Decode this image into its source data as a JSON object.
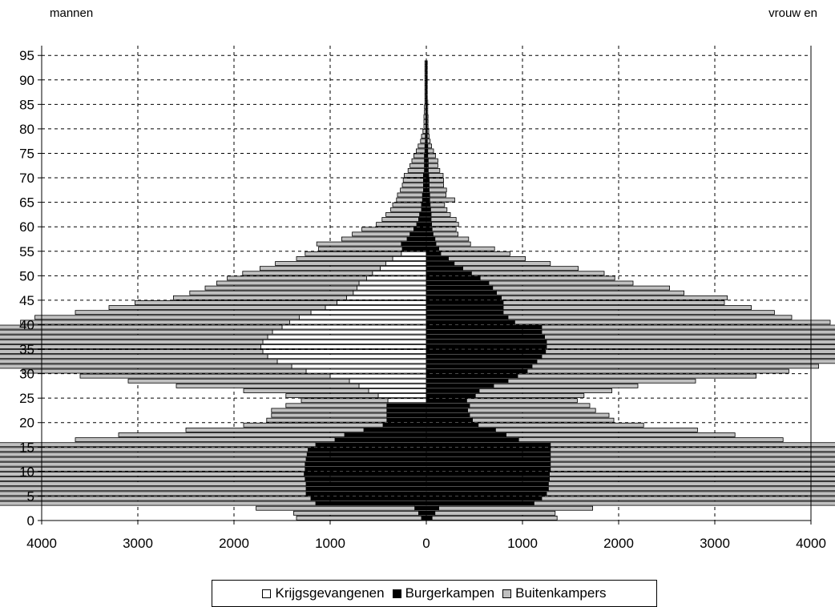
{
  "labels": {
    "left": "mannen",
    "right": "vrouw en"
  },
  "chart_data": {
    "type": "bar",
    "subtype": "population-pyramid",
    "orientation": "horizontal",
    "xlim": [
      -4000,
      4000
    ],
    "ylim": [
      0,
      97
    ],
    "y_ticks": [
      "0",
      "5",
      "10",
      "15",
      "20",
      "25",
      "30",
      "35",
      "40",
      "45",
      "50",
      "55",
      "60",
      "65",
      "70",
      "75",
      "80",
      "85",
      "90",
      "95"
    ],
    "x_ticks": [
      "4000",
      "3000",
      "2000",
      "1000",
      "0",
      "1000",
      "2000",
      "3000",
      "4000"
    ],
    "grid": true,
    "legend_position": "bottom",
    "colors": {
      "Krijgsgevangenen": "#ffffff",
      "Burgerkampen": "#000000",
      "Buitenkampers": "#c0c0c0"
    },
    "ages": [
      0,
      1,
      2,
      3,
      4,
      5,
      6,
      7,
      8,
      9,
      10,
      11,
      12,
      13,
      14,
      15,
      16,
      17,
      18,
      19,
      20,
      21,
      22,
      23,
      24,
      25,
      26,
      27,
      28,
      29,
      30,
      31,
      32,
      33,
      34,
      35,
      36,
      37,
      38,
      39,
      40,
      41,
      42,
      43,
      44,
      45,
      46,
      47,
      48,
      49,
      50,
      51,
      52,
      53,
      54,
      55,
      56,
      57,
      58,
      59,
      60,
      61,
      62,
      63,
      64,
      65,
      66,
      67,
      68,
      69,
      70,
      71,
      72,
      73,
      74,
      75,
      76,
      77,
      78,
      79,
      80,
      81,
      82,
      83,
      84,
      85,
      86,
      87,
      88,
      89,
      90,
      91,
      92,
      93
    ],
    "series": [
      {
        "name": "Krijgsgevangenen",
        "side": "mannen",
        "values": [
          0,
          0,
          0,
          0,
          0,
          0,
          0,
          0,
          0,
          0,
          0,
          0,
          0,
          0,
          0,
          0,
          0,
          0,
          0,
          0,
          0,
          0,
          0,
          0,
          400,
          500,
          600,
          700,
          800,
          1000,
          1250,
          1400,
          1550,
          1650,
          1700,
          1720,
          1700,
          1650,
          1600,
          1500,
          1420,
          1320,
          1200,
          1050,
          930,
          830,
          760,
          720,
          700,
          620,
          560,
          480,
          420,
          350,
          260,
          0,
          0,
          0,
          0,
          0,
          0,
          0,
          0,
          0,
          0,
          0,
          0,
          0,
          0,
          0,
          0,
          0,
          0,
          0,
          0,
          0,
          0,
          0,
          0,
          0,
          0,
          0,
          0,
          0,
          0,
          0,
          0,
          0,
          0,
          0,
          0,
          0,
          0,
          0
        ]
      },
      {
        "name": "Burgerkampen",
        "side": "mannen",
        "values": [
          50,
          80,
          120,
          1150,
          1200,
          1250,
          1250,
          1250,
          1260,
          1270,
          1260,
          1260,
          1250,
          1240,
          1230,
          1150,
          950,
          850,
          650,
          450,
          410,
          410,
          410,
          410,
          0,
          0,
          0,
          0,
          0,
          0,
          0,
          0,
          0,
          0,
          0,
          0,
          0,
          0,
          0,
          0,
          0,
          0,
          0,
          0,
          0,
          0,
          0,
          0,
          0,
          0,
          0,
          0,
          0,
          0,
          0,
          250,
          260,
          200,
          170,
          130,
          100,
          80,
          70,
          50,
          50,
          40,
          40,
          30,
          30,
          30,
          30,
          20,
          20,
          20,
          20,
          15,
          15,
          10,
          10,
          5,
          5,
          5,
          5,
          5,
          5,
          5,
          5,
          5,
          5,
          5,
          5,
          5,
          5,
          5
        ]
      },
      {
        "name": "Buitenkampers",
        "side": "mannen",
        "values": [
          1300,
          1300,
          1650,
          3300,
          3350,
          3600,
          3600,
          3480,
          3500,
          3550,
          3450,
          3500,
          3480,
          3500,
          3450,
          3300,
          2700,
          2350,
          1850,
          1450,
          1250,
          1200,
          1200,
          1050,
          900,
          960,
          1300,
          1900,
          2300,
          2600,
          2950,
          3300,
          3350,
          3400,
          3380,
          3450,
          3450,
          3200,
          3300,
          3050,
          2800,
          2750,
          2450,
          2250,
          2100,
          1800,
          1700,
          1580,
          1480,
          1450,
          1350,
          1250,
          1150,
          1000,
          1000,
          870,
          880,
          680,
          600,
          540,
          420,
          380,
          350,
          320,
          300,
          270,
          260,
          240,
          220,
          210,
          200,
          170,
          150,
          130,
          110,
          90,
          70,
          50,
          40,
          30,
          20,
          20,
          20,
          15,
          15,
          10,
          10,
          10,
          10,
          10,
          10,
          10,
          10,
          10
        ]
      },
      {
        "name": "Krijgsgevangenen",
        "side": "vrouw en",
        "values": [
          0,
          0,
          0,
          0,
          0,
          0,
          0,
          0,
          0,
          0,
          0,
          0,
          0,
          0,
          0,
          0,
          0,
          0,
          0,
          0,
          0,
          0,
          0,
          0,
          0,
          0,
          0,
          0,
          0,
          0,
          0,
          0,
          0,
          0,
          0,
          0,
          0,
          0,
          0,
          0,
          0,
          0,
          0,
          0,
          0,
          0,
          0,
          0,
          0,
          0,
          0,
          0,
          0,
          0,
          0,
          0,
          0,
          0,
          0,
          0,
          0,
          0,
          0,
          0,
          0,
          0,
          0,
          0,
          0,
          0,
          0,
          0,
          0,
          0,
          0,
          0,
          0,
          0,
          0,
          0,
          0,
          0,
          0,
          0,
          0,
          0,
          0,
          0,
          0,
          0,
          0,
          0,
          0,
          0
        ]
      },
      {
        "name": "Burgerkampen",
        "side": "vrouw en",
        "values": [
          60,
          90,
          130,
          1120,
          1200,
          1250,
          1270,
          1270,
          1280,
          1280,
          1290,
          1290,
          1290,
          1290,
          1290,
          1290,
          960,
          830,
          720,
          540,
          480,
          450,
          430,
          450,
          420,
          510,
          550,
          700,
          850,
          950,
          1050,
          1100,
          1150,
          1200,
          1240,
          1250,
          1250,
          1230,
          1200,
          1200,
          920,
          850,
          800,
          800,
          800,
          780,
          730,
          690,
          650,
          560,
          470,
          380,
          290,
          230,
          150,
          130,
          100,
          90,
          70,
          60,
          55,
          50,
          50,
          45,
          40,
          35,
          35,
          30,
          30,
          30,
          25,
          20,
          20,
          20,
          15,
          15,
          15,
          10,
          10,
          10,
          8,
          8,
          8,
          5,
          5,
          5,
          5,
          5,
          5,
          5,
          5,
          5,
          5,
          5
        ]
      },
      {
        "name": "Buitenkampers",
        "side": "vrouw en",
        "values": [
          1300,
          1250,
          1600,
          3200,
          3300,
          3550,
          3570,
          3500,
          3500,
          3580,
          3580,
          3600,
          3600,
          3620,
          3620,
          3580,
          2750,
          2380,
          2100,
          1720,
          1470,
          1450,
          1330,
          1250,
          1150,
          1130,
          1380,
          1500,
          1950,
          2480,
          2720,
          2980,
          3150,
          3300,
          3520,
          3590,
          3600,
          3550,
          3450,
          3420,
          3280,
          2950,
          2820,
          2580,
          2300,
          2350,
          1950,
          1840,
          1500,
          1400,
          1380,
          1200,
          1000,
          800,
          720,
          580,
          360,
          350,
          260,
          250,
          280,
          260,
          200,
          170,
          150,
          260,
          170,
          180,
          150,
          150,
          150,
          120,
          100,
          100,
          80,
          60,
          40,
          30,
          20,
          15,
          10,
          10,
          10,
          10,
          10,
          10,
          5,
          5,
          5,
          5,
          5,
          5,
          5,
          5
        ]
      }
    ]
  },
  "legend": {
    "items": [
      {
        "label": "Krijgsgevangenen",
        "color": "#ffffff"
      },
      {
        "label": "Burgerkampen",
        "color": "#000000"
      },
      {
        "label": "Buitenkampers",
        "color": "#c0c0c0"
      }
    ]
  }
}
